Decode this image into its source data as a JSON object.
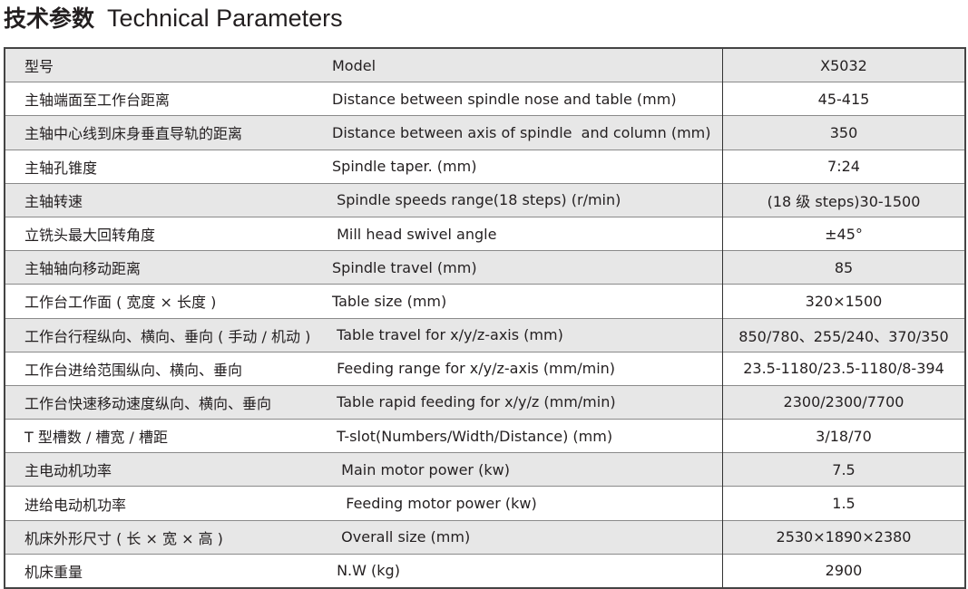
{
  "title": {
    "cn": "技术参数",
    "en": "Technical Parameters"
  },
  "rows": [
    {
      "cn": "型号",
      "en": "Model",
      "value": "X5032"
    },
    {
      "cn": "主轴端面至工作台距离",
      "en": "Distance between spindle nose and table (mm)",
      "value": "45-415"
    },
    {
      "cn": "主轴中心线到床身垂直导轨的距离",
      "en": "Distance between axis of spindle  and column (mm)",
      "value": "350"
    },
    {
      "cn": "主轴孔锥度",
      "en": "Spindle taper. (mm)",
      "value": "7:24"
    },
    {
      "cn": "主轴转速",
      "en": " Spindle speeds range(18 steps) (r/min)",
      "value": "(18 级 steps)30-1500"
    },
    {
      "cn": "立铣头最大回转角度",
      "en": " Mill head swivel angle",
      "value": "±45°"
    },
    {
      "cn": "主轴轴向移动距离",
      "en": "Spindle travel (mm)",
      "value": "85"
    },
    {
      "cn": "工作台工作面 ( 宽度 × 长度 )",
      "en": "Table size (mm)",
      "value": "320×1500"
    },
    {
      "cn": "工作台行程纵向、横向、垂向 ( 手动 / 机动 )",
      "en": " Table travel for x/y/z-axis (mm)",
      "value": "850/780、255/240、370/350"
    },
    {
      "cn": "工作台进给范围纵向、横向、垂向",
      "en": " Feeding range for x/y/z-axis (mm/min)",
      "value": "23.5-1180/23.5-1180/8-394"
    },
    {
      "cn": "工作台快速移动速度纵向、横向、垂向",
      "en": " Table rapid feeding for x/y/z (mm/min)",
      "value": "2300/2300/7700"
    },
    {
      "cn": "T 型槽数 / 槽宽 / 槽距",
      "en": " T-slot(Numbers/Width/Distance) (mm)",
      "value": "3/18/70"
    },
    {
      "cn": "主电动机功率",
      "en": "  Main motor power (kw)",
      "value": "7.5"
    },
    {
      "cn": "进给电动机功率",
      "en": "   Feeding motor power (kw)",
      "value": "1.5"
    },
    {
      "cn": "机床外形尺寸 ( 长 × 宽 × 高 )",
      "en": "  Overall size (mm)",
      "value": "2530×1890×2380"
    },
    {
      "cn": "机床重量",
      "en": " N.W (kg)",
      "value": "2900"
    }
  ]
}
